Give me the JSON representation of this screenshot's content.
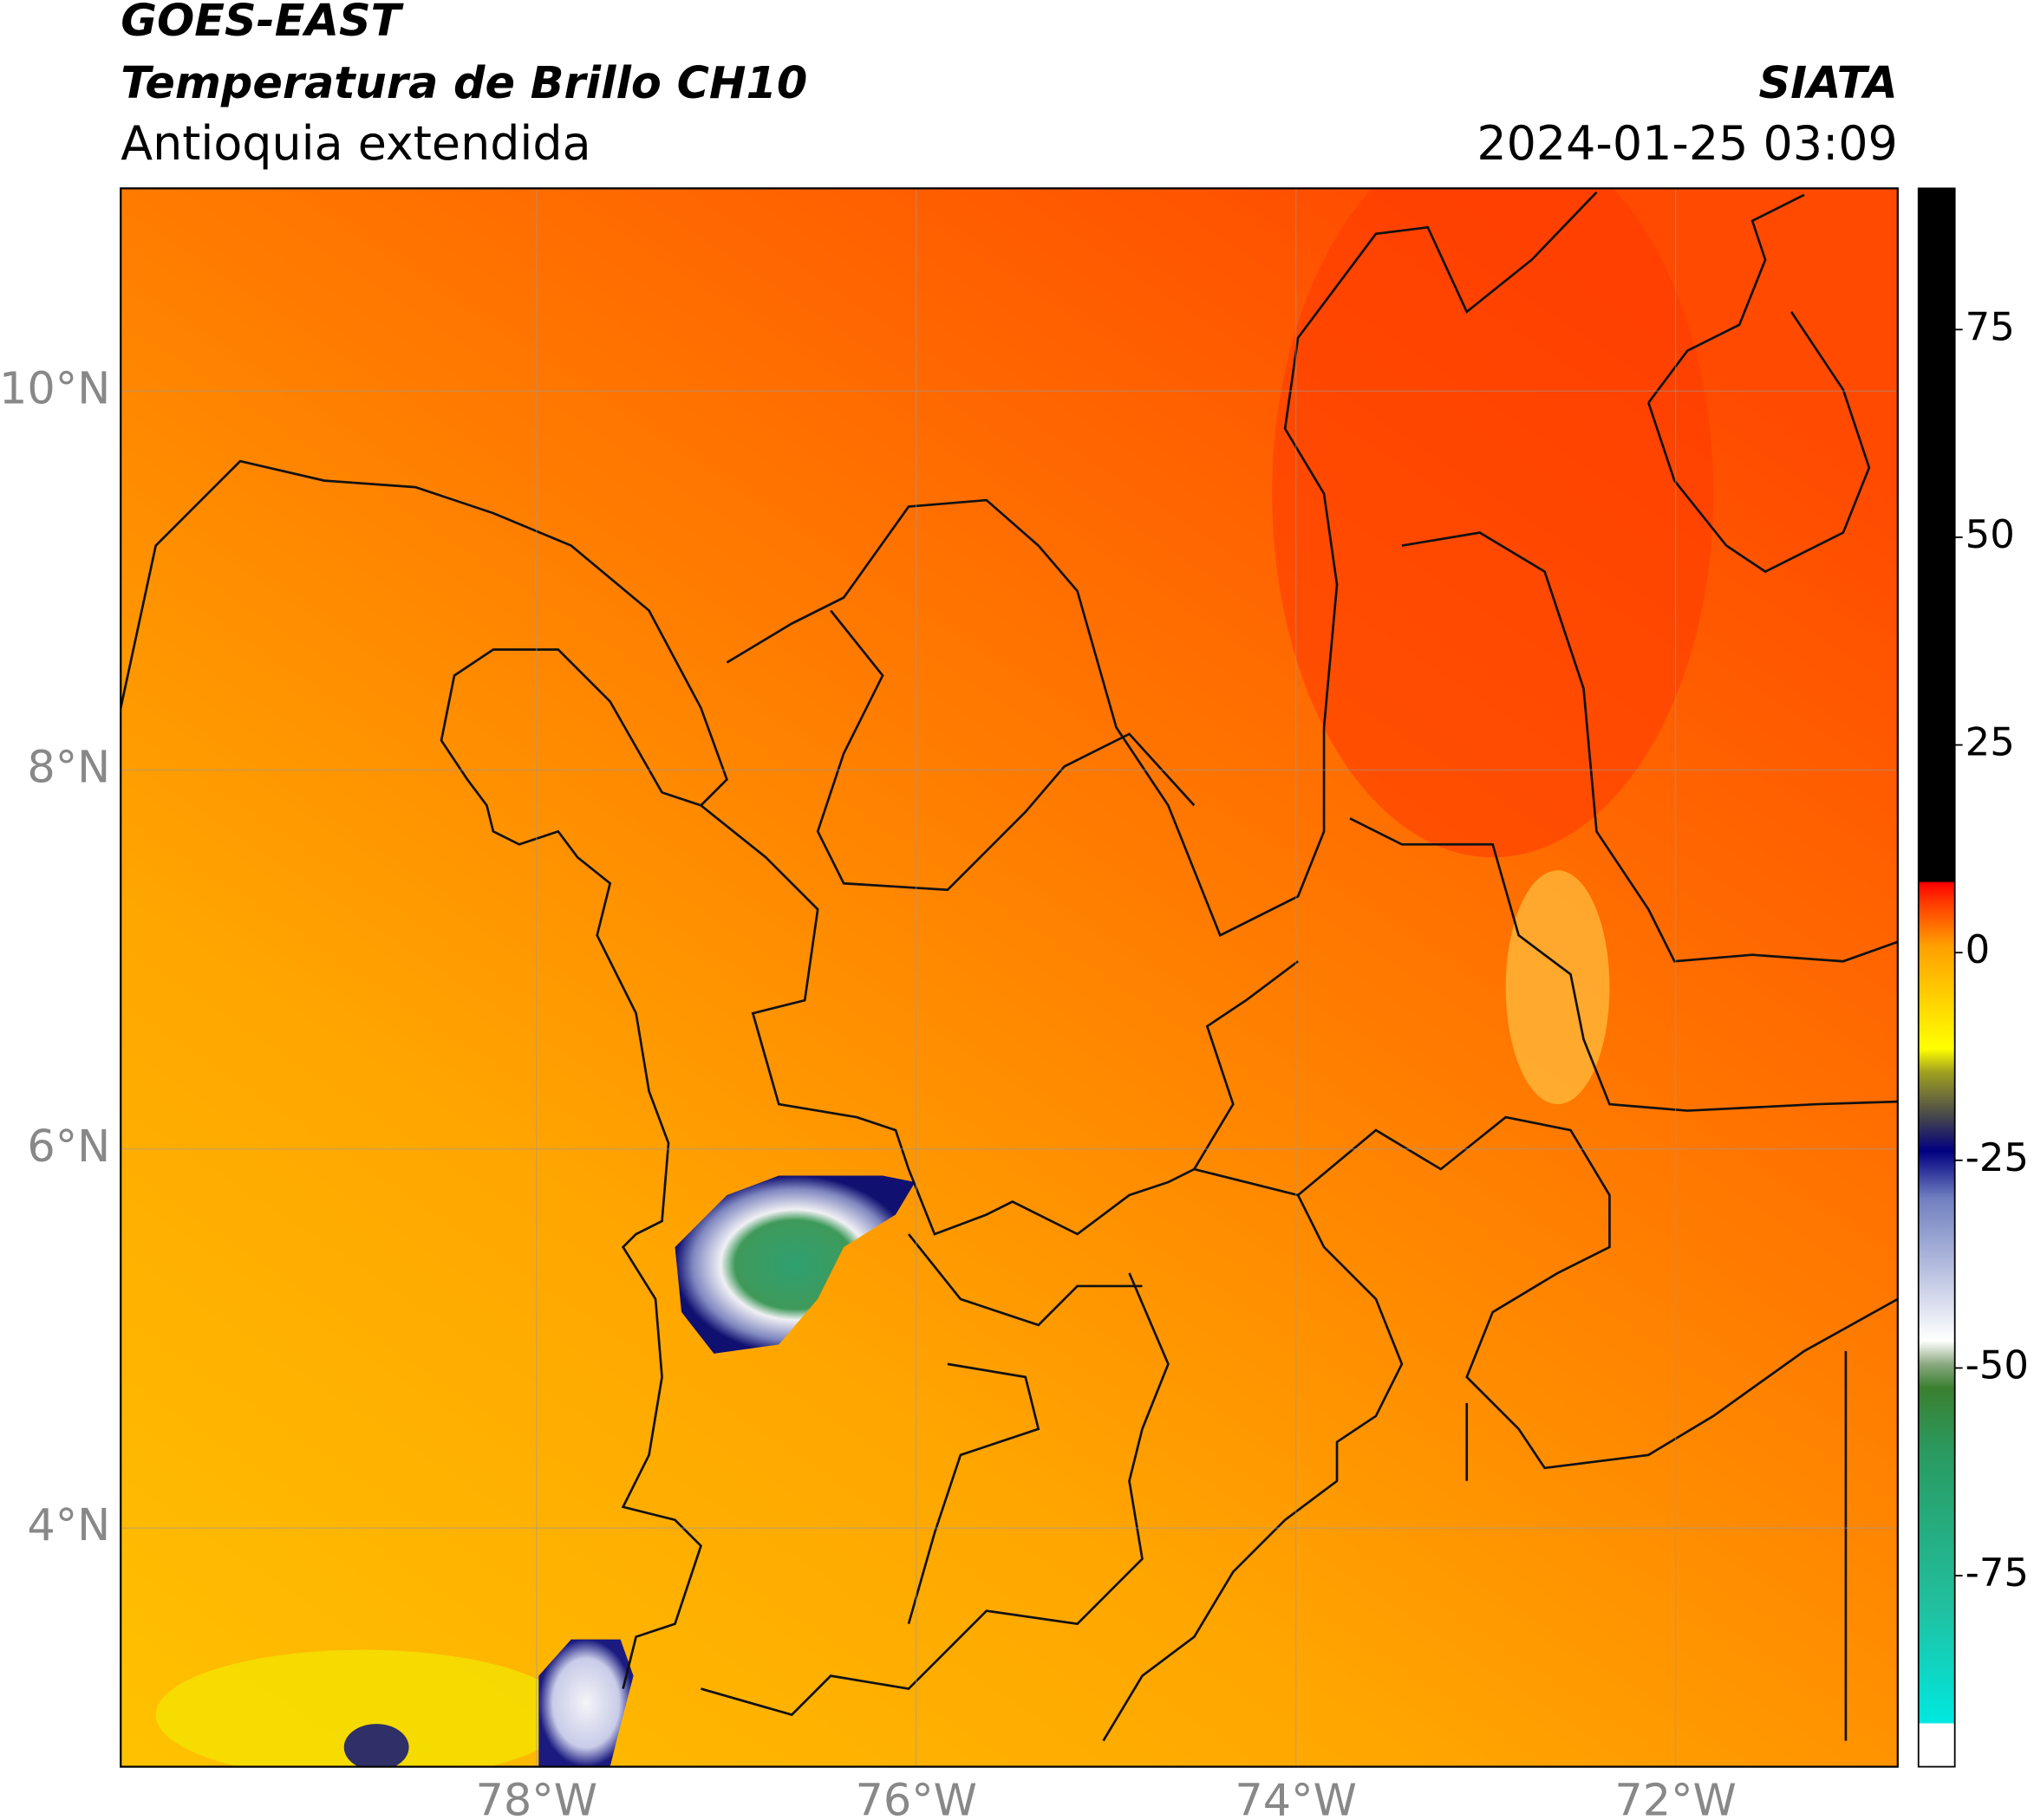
{
  "header": {
    "satellite": "GOES-EAST",
    "product": "Temperatura de Brillo CH10",
    "region": "Antioquia extendida",
    "org": "SIATA",
    "datetime": "2024-01-25 03:09"
  },
  "map": {
    "xlim": [
      -80.19,
      -70.83
    ],
    "ylim": [
      2.74,
      11.07
    ],
    "xticks": [
      {
        "value": -78,
        "label": "78°W"
      },
      {
        "value": -76,
        "label": "76°W"
      },
      {
        "value": -74,
        "label": "74°W"
      },
      {
        "value": -72,
        "label": "72°W"
      }
    ],
    "yticks": [
      {
        "value": 4,
        "label": "4°N"
      },
      {
        "value": 6,
        "label": "6°N"
      },
      {
        "value": 8,
        "label": "8°N"
      },
      {
        "value": 10,
        "label": "10°N"
      }
    ],
    "grid": true
  },
  "colorbar": {
    "lim": [
      -98,
      92
    ],
    "ticks": [
      75,
      50,
      25,
      0,
      -25,
      -50,
      -75
    ]
  }
}
